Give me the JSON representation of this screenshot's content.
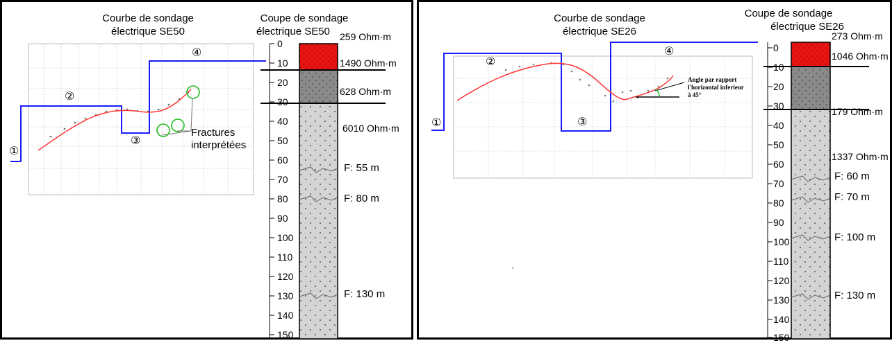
{
  "panels": [
    {
      "curve_title": "Courbe de sondage\nélectrique SE50",
      "column_title": "Coupe de sondage\nélectrique SE50",
      "layers": [
        {
          "resistivity": "259 Ohm·m"
        },
        {
          "resistivity": "1490 Ohm·m"
        },
        {
          "resistivity": "628 Ohm·m"
        },
        {
          "resistivity": "6010 Ohm·m"
        }
      ],
      "fractures": [
        "F: 55 m",
        "F: 80 m",
        "F: 130 m"
      ],
      "segment_markers": [
        "①",
        "②",
        "③",
        "④"
      ],
      "annotation": "Fractures\ninterprétées"
    },
    {
      "curve_title": "Courbe de sondage\nélectrique SE26",
      "column_title": "Coupe de sondage\nélectrique SE26",
      "layers": [
        {
          "resistivity": "273 Ohm·m"
        },
        {
          "resistivity": "1046 Ohm·m"
        },
        {
          "resistivity": "179 Ohm·m"
        },
        {
          "resistivity": "1337 Ohm·m"
        }
      ],
      "fractures": [
        "F: 60 m",
        "F: 70 m",
        "F: 100 m",
        "F: 130 m"
      ],
      "segment_markers": [
        "①",
        "②",
        "③",
        "④"
      ],
      "annotation": "Angle par rapport\nl'horizontal inferieur\nà 45°"
    }
  ],
  "depth_ticks": [
    "0",
    "10",
    "20",
    "30",
    "40",
    "50",
    "60",
    "70",
    "80",
    "90",
    "100",
    "110",
    "120",
    "130",
    "140",
    "150"
  ],
  "colors": {
    "model_line": "#1a1aff",
    "fit_curve": "#ff3333",
    "fracture_circle": "#22bb22",
    "top_layer": "#e81414",
    "dark_layer": "#8a8a8a",
    "light_layer": "#d4d4d4"
  }
}
